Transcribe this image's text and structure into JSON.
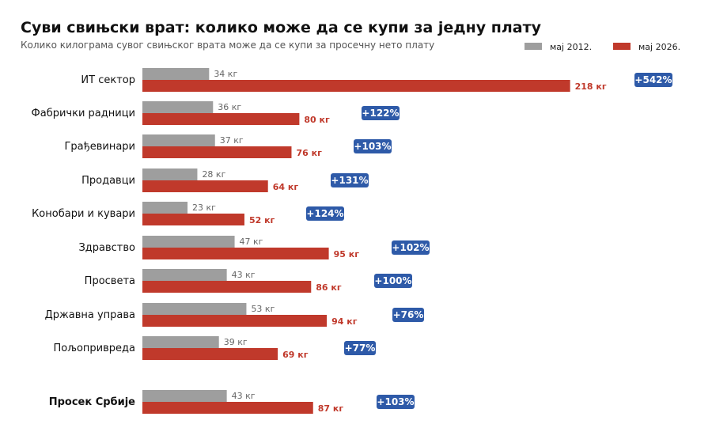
{
  "chart_data": {
    "type": "bar",
    "title": "Суви свињски врат: колико може да се купи за једну плату",
    "subtitle": "Колико килограма сувог свињског врата може да се купи за просечну нето плату",
    "series": [
      {
        "name": "мај 2012.",
        "color": "#9e9e9e",
        "values": [
          34,
          36,
          37,
          28,
          23,
          47,
          43,
          53,
          39,
          43
        ],
        "labels": [
          "34 кг",
          "36 кг",
          "37 кг",
          "28 кг",
          "23 кг",
          "47 кг",
          "43 кг",
          "53 кг",
          "39 кг",
          "43 кг"
        ]
      },
      {
        "name": "мај 2026.",
        "color": "#c0392b",
        "values": [
          218,
          80,
          76,
          64,
          52,
          95,
          86,
          94,
          69,
          87
        ],
        "labels": [
          "218 кг",
          "80 кг",
          "76 кг",
          "64 кг",
          "52 кг",
          "95 кг",
          "86 кг",
          "94 кг",
          "69 кг",
          "87 кг"
        ]
      }
    ],
    "categories": [
      "ИТ сектор",
      "Фабрички радници",
      "Грађевинари",
      "Продавци",
      "Конобари и кувари",
      "Здравство",
      "Просвета",
      "Државна управа",
      "Пољопривреда",
      "Просек Србије"
    ],
    "change": [
      "+542%",
      "+122%",
      "+103%",
      "+131%",
      "+124%",
      "+102%",
      "+100%",
      "+76%",
      "+77%",
      "+103%"
    ],
    "highlight_category": "Просек Србије",
    "badge_color": "#2e5aa8",
    "legend_position": "top-right",
    "grid": false
  }
}
